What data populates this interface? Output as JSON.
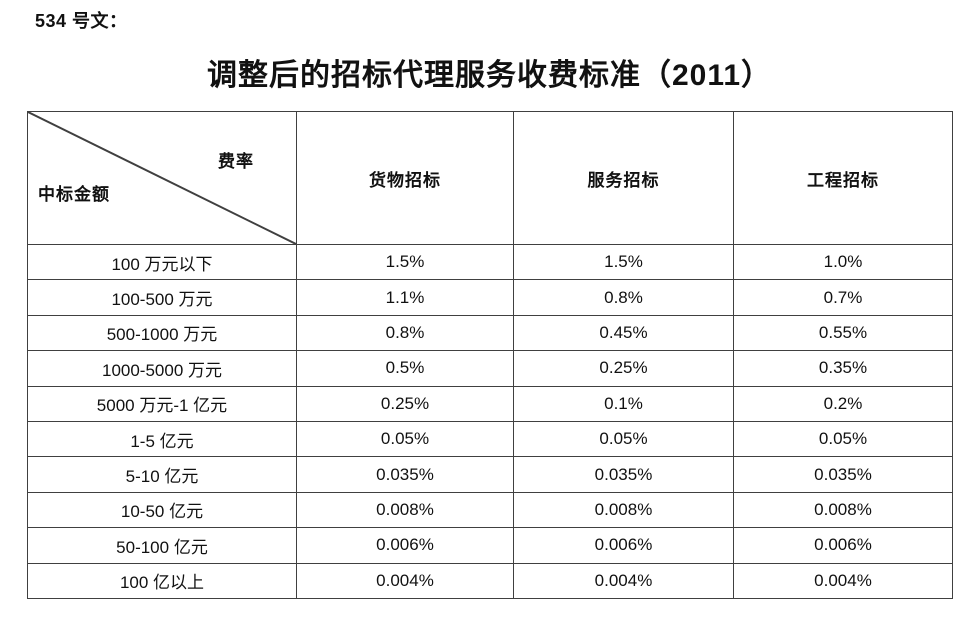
{
  "page": {
    "doc_label": "534 号文：",
    "title": "调整后的招标代理服务收费标准（2011）"
  },
  "table": {
    "corner": {
      "top_right": "费率",
      "bottom_left": "中标金额"
    },
    "columns": [
      "货物招标",
      "服务招标",
      "工程招标"
    ],
    "rows": [
      {
        "label": "100 万元以下",
        "values": [
          "1.5%",
          "1.5%",
          "1.0%"
        ]
      },
      {
        "label": "100-500 万元",
        "values": [
          "1.1%",
          "0.8%",
          "0.7%"
        ]
      },
      {
        "label": "500-1000 万元",
        "values": [
          "0.8%",
          "0.45%",
          "0.55%"
        ]
      },
      {
        "label": "1000-5000 万元",
        "values": [
          "0.5%",
          "0.25%",
          "0.35%"
        ]
      },
      {
        "label": "5000 万元-1 亿元",
        "values": [
          "0.25%",
          "0.1%",
          "0.2%"
        ]
      },
      {
        "label": "1-5 亿元",
        "values": [
          "0.05%",
          "0.05%",
          "0.05%"
        ]
      },
      {
        "label": "5-10 亿元",
        "values": [
          "0.035%",
          "0.035%",
          "0.035%"
        ]
      },
      {
        "label": "10-50 亿元",
        "values": [
          "0.008%",
          "0.008%",
          "0.008%"
        ]
      },
      {
        "label": "50-100 亿元",
        "values": [
          "0.006%",
          "0.006%",
          "0.006%"
        ]
      },
      {
        "label": "100 亿以上",
        "values": [
          "0.004%",
          "0.004%",
          "0.004%"
        ]
      }
    ]
  },
  "colors": {
    "border": "#404040",
    "text": "#111111",
    "background": "#ffffff"
  }
}
